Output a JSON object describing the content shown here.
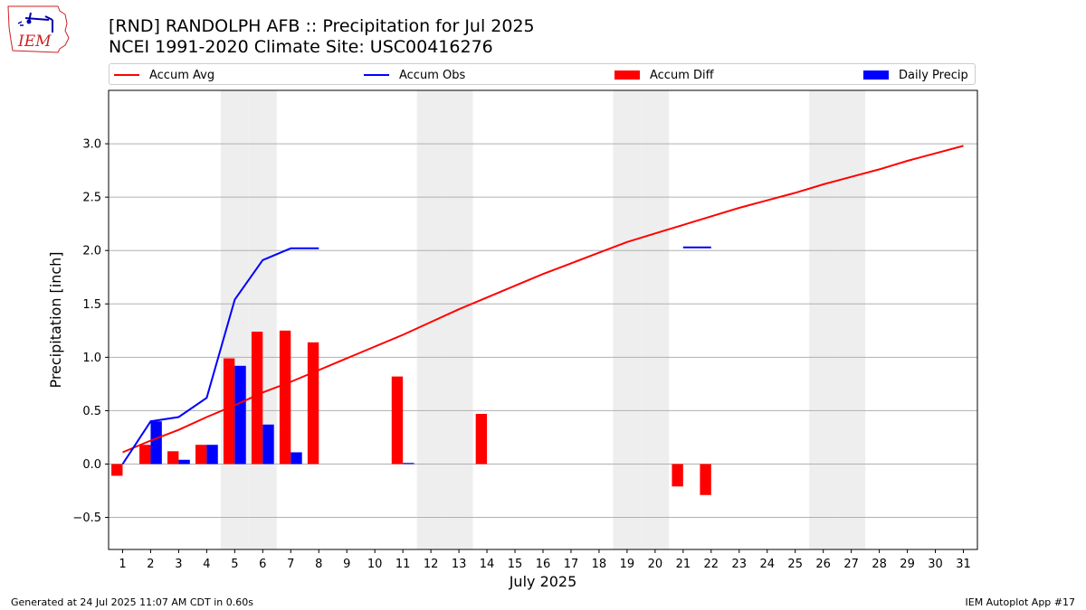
{
  "title_line1": "[RND] RANDOLPH AFB :: Precipitation for Jul 2025",
  "title_line2": "NCEI 1991-2020 Climate Site: USC00416276",
  "logo_text": "IEM",
  "footer_left": "Generated at 24 Jul 2025 11:07 AM CDT in 0.60s",
  "footer_right": "IEM Autoplot App #17",
  "colors": {
    "avg": "#ff0000",
    "obs": "#0000ff",
    "diff": "#ff0000",
    "daily": "#0000ff",
    "weekend": "#eeeeee",
    "grid": "#b0b0b0"
  },
  "legend": [
    {
      "label": "Accum Avg",
      "kind": "line",
      "color": "#ff0000"
    },
    {
      "label": "Accum Obs",
      "kind": "line",
      "color": "#0000ff"
    },
    {
      "label": "Accum Diff",
      "kind": "box",
      "color": "#ff0000"
    },
    {
      "label": "Daily Precip",
      "kind": "box",
      "color": "#0000ff"
    }
  ],
  "chart_data": {
    "type": "bar",
    "xlabel": "July 2025",
    "ylabel": "Precipitation [inch]",
    "xlim": [
      0.5,
      31.5
    ],
    "ylim": [
      -0.8,
      3.5
    ],
    "yticks": [
      -0.5,
      0.0,
      0.5,
      1.0,
      1.5,
      2.0,
      2.5,
      3.0
    ],
    "ytick_labels": [
      "−0.5",
      "0.0",
      "0.5",
      "1.0",
      "1.5",
      "2.0",
      "2.5",
      "3.0"
    ],
    "xticks": [
      1,
      2,
      3,
      4,
      5,
      6,
      7,
      8,
      9,
      10,
      11,
      12,
      13,
      14,
      15,
      16,
      17,
      18,
      19,
      20,
      21,
      22,
      23,
      24,
      25,
      26,
      27,
      28,
      29,
      30,
      31
    ],
    "grid": "horizontal",
    "weekend_days": [
      5,
      6,
      12,
      13,
      19,
      20,
      26,
      27
    ],
    "series": [
      {
        "name": "Accum Avg",
        "type": "line",
        "x": [
          1,
          2,
          3,
          4,
          5,
          6,
          7,
          8,
          9,
          10,
          11,
          12,
          13,
          14,
          15,
          16,
          17,
          18,
          19,
          20,
          21,
          22,
          23,
          24,
          25,
          26,
          27,
          28,
          29,
          30,
          31
        ],
        "values": [
          0.11,
          0.22,
          0.32,
          0.44,
          0.55,
          0.67,
          0.77,
          0.88,
          0.99,
          1.1,
          1.21,
          1.33,
          1.45,
          1.56,
          1.67,
          1.78,
          1.88,
          1.98,
          2.08,
          2.16,
          2.24,
          2.32,
          2.4,
          2.47,
          2.54,
          2.62,
          2.69,
          2.76,
          2.84,
          2.91,
          2.98
        ]
      },
      {
        "name": "Accum Obs",
        "type": "line",
        "segments": [
          {
            "x": [
              1,
              2,
              3,
              4,
              5,
              6,
              7,
              8
            ],
            "values": [
              0.0,
              0.4,
              0.44,
              0.62,
              1.54,
              1.91,
              2.02,
              2.02
            ]
          },
          {
            "x": [
              21,
              22
            ],
            "values": [
              2.03,
              2.03
            ]
          }
        ]
      },
      {
        "name": "Accum Diff",
        "type": "bar",
        "x": [
          1,
          2,
          3,
          4,
          5,
          6,
          7,
          8,
          11,
          14,
          21,
          22
        ],
        "values": [
          -0.11,
          0.18,
          0.12,
          0.18,
          0.99,
          1.24,
          1.25,
          1.14,
          0.82,
          0.47,
          -0.21,
          -0.29
        ]
      },
      {
        "name": "Daily Precip",
        "type": "bar",
        "x": [
          2,
          3,
          4,
          5,
          6,
          7,
          11
        ],
        "values": [
          0.4,
          0.04,
          0.18,
          0.92,
          0.37,
          0.11,
          0.01
        ]
      }
    ]
  }
}
